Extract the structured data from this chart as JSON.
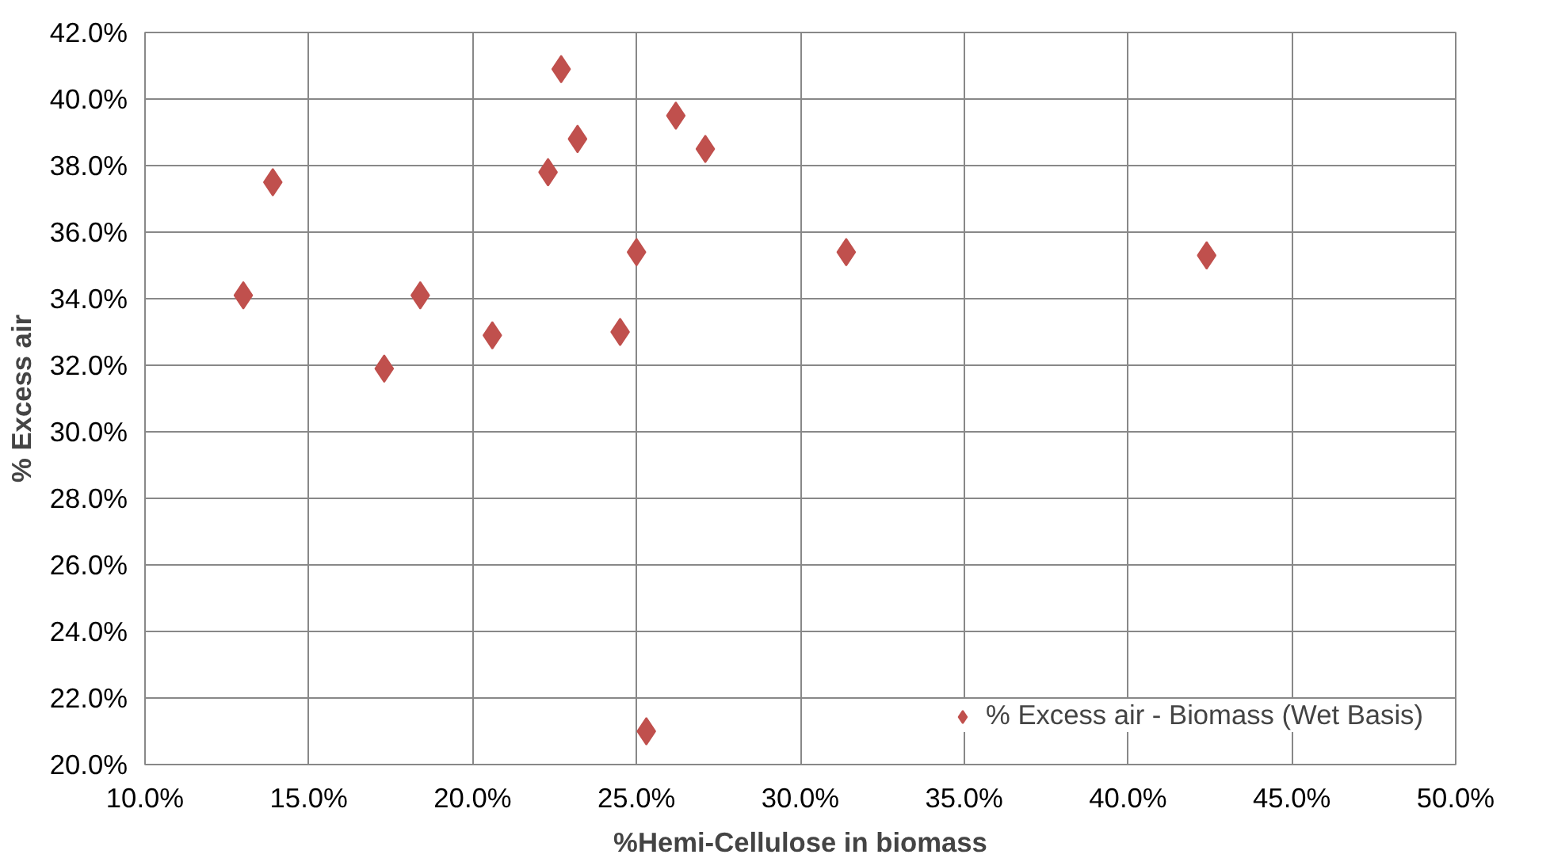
{
  "chart_data": {
    "type": "scatter",
    "xlabel": "%Hemi-Cellulose in biomass",
    "ylabel": "% Excess air",
    "xlim": [
      10,
      50
    ],
    "ylim": [
      20,
      42
    ],
    "xticks": [
      {
        "value": 10,
        "label": "10.0%"
      },
      {
        "value": 15,
        "label": "15.0%"
      },
      {
        "value": 20,
        "label": "20.0%"
      },
      {
        "value": 25,
        "label": "25.0%"
      },
      {
        "value": 30,
        "label": "30.0%"
      },
      {
        "value": 35,
        "label": "35.0%"
      },
      {
        "value": 40,
        "label": "40.0%"
      },
      {
        "value": 45,
        "label": "45.0%"
      },
      {
        "value": 50,
        "label": "50.0%"
      }
    ],
    "yticks": [
      {
        "value": 20,
        "label": "20.0%"
      },
      {
        "value": 22,
        "label": "22.0%"
      },
      {
        "value": 24,
        "label": "24.0%"
      },
      {
        "value": 26,
        "label": "26.0%"
      },
      {
        "value": 28,
        "label": "28.0%"
      },
      {
        "value": 30,
        "label": "30.0%"
      },
      {
        "value": 32,
        "label": "32.0%"
      },
      {
        "value": 34,
        "label": "34.0%"
      },
      {
        "value": 36,
        "label": "36.0%"
      },
      {
        "value": 38,
        "label": "38.0%"
      },
      {
        "value": 40,
        "label": "40.0%"
      },
      {
        "value": 42,
        "label": "42.0%"
      }
    ],
    "grid": true,
    "legend": "bottom right",
    "marker": "diamond",
    "series": [
      {
        "name": "% Excess air - Biomass (Wet Basis)",
        "color": "#c0504d",
        "x": [
          13.0,
          13.9,
          17.3,
          18.4,
          20.6,
          22.3,
          22.7,
          23.2,
          24.5,
          25.0,
          25.3,
          26.2,
          27.1,
          31.4,
          42.4
        ],
        "values": [
          34.1,
          37.5,
          31.9,
          34.1,
          32.9,
          37.8,
          40.9,
          38.8,
          33.0,
          35.4,
          21.0,
          39.5,
          38.5,
          35.4,
          35.3
        ]
      }
    ]
  }
}
